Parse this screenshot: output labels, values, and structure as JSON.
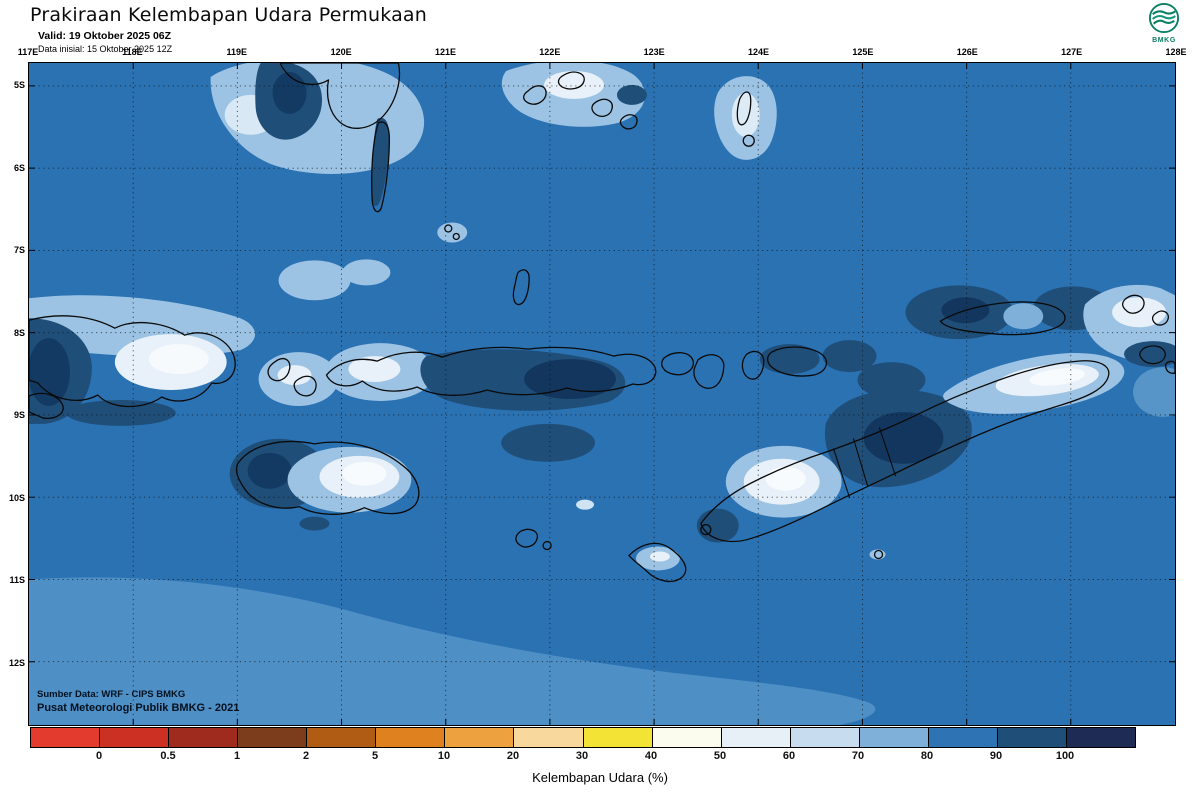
{
  "header": {
    "title": "Prakiraan Kelembapan Udara Permukaan",
    "valid_line": "Valid: 19 Oktober 2025 06Z",
    "init_line": "Data inisial: 15 Oktober 2025 12Z",
    "logo_label": "BMKG"
  },
  "map": {
    "longitude_labels": [
      "117E",
      "118E",
      "119E",
      "120E",
      "121E",
      "122E",
      "123E",
      "124E",
      "125E",
      "126E",
      "127E",
      "128E"
    ],
    "latitude_labels": [
      "5S",
      "6S",
      "7S",
      "8S",
      "9S",
      "10S",
      "11S",
      "12S"
    ],
    "source_line1": "Sumber Data: WRF - CIPS BMKG",
    "source_line2": "Pusat Meteorologi Publik BMKG - 2021"
  },
  "legend": {
    "title": "Kelembapan Udara (%)",
    "tick_labels": [
      "0",
      "0.5",
      "1",
      "2",
      "5",
      "10",
      "20",
      "30",
      "40",
      "50",
      "60",
      "70",
      "80",
      "90",
      "100"
    ],
    "segment_colors": [
      "#e33b2d",
      "#cb3023",
      "#9e2b1e",
      "#7c3d1d",
      "#b05c15",
      "#e0811f",
      "#eda13f",
      "#f8d89c",
      "#f3e334",
      "#fbfbee",
      "#e8f0f7",
      "#c7dcef",
      "#7fb0da",
      "#2e74b5",
      "#1f4e79",
      "#1e2b55"
    ]
  }
}
